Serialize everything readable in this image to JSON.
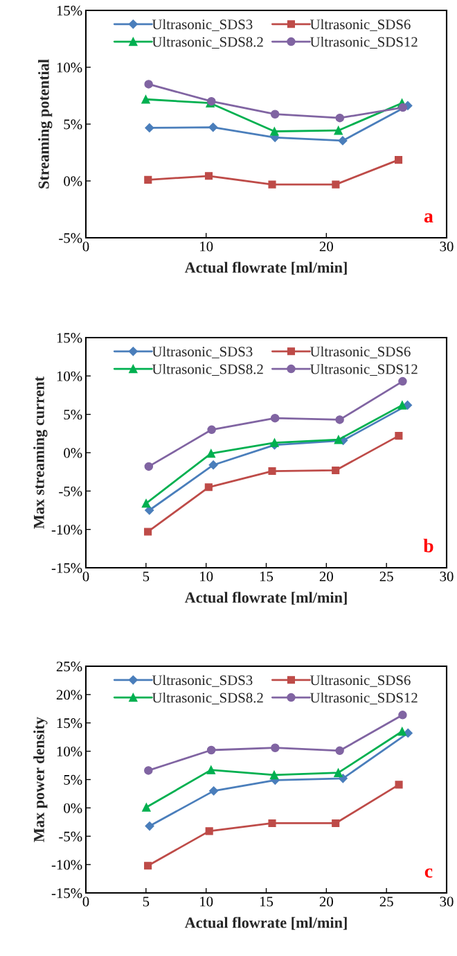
{
  "chart_data": [
    {
      "type": "line",
      "xlabel": "Actual flowrate [ml/min]",
      "ylabel": "Streaming potential",
      "xlim": [
        0,
        30
      ],
      "xticks": [
        0,
        10,
        20,
        30
      ],
      "ylim": [
        -5,
        15
      ],
      "yticks": [
        {
          "value": -5,
          "label": "-5%"
        },
        {
          "value": 0,
          "label": "0%"
        },
        {
          "value": 5,
          "label": "5%"
        },
        {
          "value": 10,
          "label": "10%"
        },
        {
          "value": 15,
          "label": "15%"
        }
      ],
      "grid": false,
      "legend": "top",
      "annotations": [
        "a"
      ],
      "series": [
        {
          "name": "Ultrasonic_SDS3",
          "color": "#4a7ebb",
          "marker": "diamond",
          "x": [
            5.29,
            10.58,
            15.73,
            21.36,
            26.77
          ],
          "values": [
            4.67,
            4.72,
            3.82,
            3.54,
            6.62
          ]
        },
        {
          "name": "Ultrasonic_SDS6",
          "color": "#be4b48",
          "marker": "square",
          "x": [
            5.17,
            10.22,
            15.49,
            20.78,
            26.0
          ],
          "values": [
            0.1,
            0.44,
            -0.31,
            -0.31,
            1.85
          ]
        },
        {
          "name": "Ultrasonic_SDS8.2",
          "color": "#00b050",
          "marker": "triangle",
          "x": [
            4.98,
            10.34,
            15.68,
            21.0,
            26.29
          ],
          "values": [
            7.18,
            6.85,
            4.36,
            4.44,
            6.85
          ]
        },
        {
          "name": "Ultrasonic_SDS12",
          "color": "#8064a2",
          "marker": "circle",
          "x": [
            5.22,
            10.44,
            15.73,
            21.12,
            26.36
          ],
          "values": [
            8.51,
            7.0,
            5.87,
            5.54,
            6.46
          ]
        }
      ]
    },
    {
      "type": "line",
      "xlabel": "Actual flowrate [ml/min]",
      "ylabel": "Max streaming current",
      "xlim": [
        0,
        30
      ],
      "xticks": [
        0,
        5,
        10,
        15,
        20,
        25,
        30
      ],
      "ylim": [
        -15,
        15
      ],
      "yticks": [
        {
          "value": -15,
          "label": "-15%"
        },
        {
          "value": -10,
          "label": "-10%"
        },
        {
          "value": -5,
          "label": "-5%"
        },
        {
          "value": 0,
          "label": "0%"
        },
        {
          "value": 5,
          "label": "5%"
        },
        {
          "value": 10,
          "label": "10%"
        },
        {
          "value": 15,
          "label": "15%"
        }
      ],
      "grid": false,
      "legend": "top",
      "annotations": [
        "b"
      ],
      "series": [
        {
          "name": "Ultrasonic_SDS3",
          "color": "#4a7ebb",
          "marker": "diamond",
          "x": [
            5.28,
            10.6,
            15.69,
            21.4,
            26.75
          ],
          "values": [
            -7.5,
            -1.6,
            1.0,
            1.6,
            6.2
          ]
        },
        {
          "name": "Ultrasonic_SDS6",
          "color": "#be4b48",
          "marker": "square",
          "x": [
            5.16,
            10.21,
            15.49,
            20.77,
            26.02
          ],
          "values": [
            -10.3,
            -4.5,
            -2.4,
            -2.3,
            2.2
          ]
        },
        {
          "name": "Ultrasonic_SDS8.2",
          "color": "#00b050",
          "marker": "triangle",
          "x": [
            5.01,
            10.41,
            15.69,
            21.01,
            26.31
          ],
          "values": [
            -6.6,
            -0.1,
            1.3,
            1.7,
            6.2
          ]
        },
        {
          "name": "Ultrasonic_SDS12",
          "color": "#8064a2",
          "marker": "circle",
          "x": [
            5.23,
            10.46,
            15.73,
            21.11,
            26.34
          ],
          "values": [
            -1.8,
            3.0,
            4.5,
            4.3,
            9.3
          ]
        }
      ]
    },
    {
      "type": "line",
      "xlabel": "Actual flowrate [ml/min]",
      "ylabel": "Max power density",
      "xlim": [
        0,
        30
      ],
      "xticks": [
        0,
        5,
        10,
        15,
        20,
        25,
        30
      ],
      "ylim": [
        -15,
        25
      ],
      "yticks": [
        {
          "value": -15,
          "label": "-15%"
        },
        {
          "value": -10,
          "label": "-10%"
        },
        {
          "value": -5,
          "label": "-5%"
        },
        {
          "value": 0,
          "label": "0%"
        },
        {
          "value": 5,
          "label": "5%"
        },
        {
          "value": 10,
          "label": "10%"
        },
        {
          "value": 15,
          "label": "15%"
        },
        {
          "value": 20,
          "label": "20%"
        },
        {
          "value": 25,
          "label": "25%"
        }
      ],
      "grid": false,
      "legend": "top",
      "annotations": [
        "c"
      ],
      "series": [
        {
          "name": "Ultrasonic_SDS3",
          "color": "#4a7ebb",
          "marker": "diamond",
          "x": [
            5.3,
            10.63,
            15.74,
            21.38,
            26.79
          ],
          "values": [
            -3.2,
            3.0,
            4.9,
            5.2,
            13.2
          ]
        },
        {
          "name": "Ultrasonic_SDS6",
          "color": "#be4b48",
          "marker": "square",
          "x": [
            5.16,
            10.26,
            15.49,
            20.77,
            26.03
          ],
          "values": [
            -10.2,
            -4.1,
            -2.7,
            -2.7,
            4.1
          ]
        },
        {
          "name": "Ultrasonic_SDS8.2",
          "color": "#00b050",
          "marker": "triangle",
          "x": [
            5.03,
            10.41,
            15.66,
            20.99,
            26.3
          ],
          "values": [
            0.1,
            6.7,
            5.8,
            6.2,
            13.5
          ]
        },
        {
          "name": "Ultrasonic_SDS12",
          "color": "#8064a2",
          "marker": "circle",
          "x": [
            5.2,
            10.43,
            15.74,
            21.11,
            26.34
          ],
          "values": [
            6.6,
            10.2,
            10.6,
            10.1,
            16.4
          ]
        }
      ]
    }
  ]
}
